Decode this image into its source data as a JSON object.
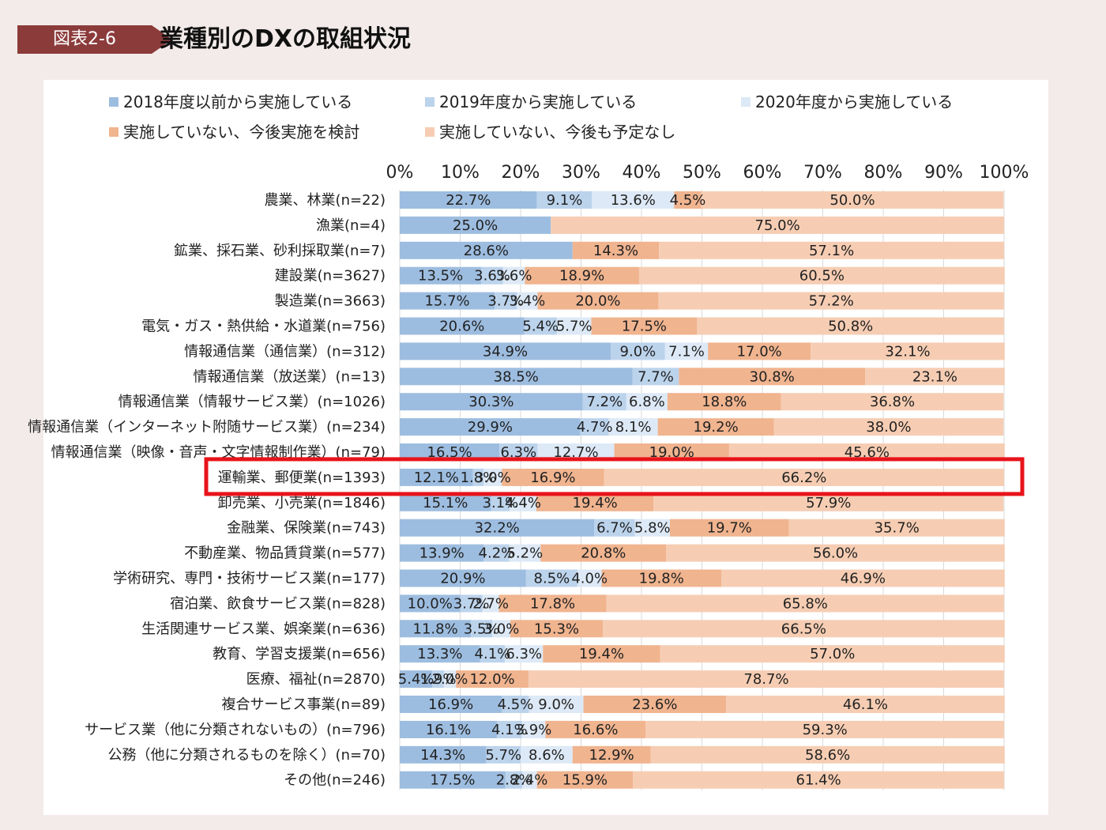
{
  "header": {
    "tag": "図表2-6",
    "title": "業種別のDXの取組状況",
    "tag_color": "#8c3b3b"
  },
  "highlight": {
    "category_index": 11,
    "color": "#e8141b"
  },
  "chart_data": {
    "type": "bar",
    "orientation": "horizontal",
    "stacked": true,
    "xlim": [
      0,
      100
    ],
    "ticks": [
      "0%",
      "10%",
      "20%",
      "30%",
      "40%",
      "50%",
      "60%",
      "70%",
      "80%",
      "90%",
      "100%"
    ],
    "legend_position": "top",
    "categories": [
      "農業、林業(n=22)",
      "漁業(n=4)",
      "鉱業、採石業、砂利採取業(n=7)",
      "建設業(n=3627)",
      "製造業(n=3663)",
      "電気・ガス・熱供給・水道業(n=756)",
      "情報通信業（通信業）(n=312)",
      "情報通信業（放送業）(n=13)",
      "情報通信業（情報サービス業）(n=1026)",
      "情報通信業（インターネット附随サービス業）(n=234)",
      "情報通信業（映像・音声・文字情報制作業）(n=79)",
      "運輸業、郵便業(n=1393)",
      "卸売業、小売業(n=1846)",
      "金融業、保険業(n=743)",
      "不動産業、物品賃貸業(n=577)",
      "学術研究、専門・技術サービス業(n=177)",
      "宿泊業、飲食サービス業(n=828)",
      "生活関連サービス業、娯楽業(n=636)",
      "教育、学習支援業(n=656)",
      "医療、福祉(n=2870)",
      "複合サービス事業(n=89)",
      "サービス業（他に分類されないもの）(n=796)",
      "公務（他に分類されるものを除く）(n=70)",
      "その他(n=246)"
    ],
    "series": [
      {
        "name": "2018年度以前から実施している",
        "color": "#9dbde0",
        "values": [
          22.7,
          25.0,
          28.6,
          13.5,
          15.7,
          20.6,
          34.9,
          38.5,
          30.3,
          29.9,
          16.5,
          12.1,
          15.1,
          32.2,
          13.9,
          20.9,
          10.0,
          11.8,
          13.3,
          5.4,
          16.9,
          16.1,
          14.3,
          17.5
        ],
        "labels": [
          "22.7%",
          "25.0%",
          "28.6%",
          "13.5%",
          "15.7%",
          "20.6%",
          "34.9%",
          "38.5%",
          "30.3%",
          "29.9%",
          "16.5%",
          "12.1%",
          "15.1%",
          "32.2%",
          "13.9%",
          "20.9%",
          "10.0%",
          "11.8%",
          "13.3%",
          "5.4%",
          "16.9%",
          "16.1%",
          "14.3%",
          "17.5%"
        ]
      },
      {
        "name": "2019年度から実施している",
        "color": "#bcd3ec",
        "values": [
          9.1,
          0,
          0,
          3.6,
          3.7,
          5.4,
          9.0,
          7.7,
          7.2,
          4.7,
          6.3,
          1.8,
          3.1,
          6.7,
          4.2,
          8.5,
          3.7,
          3.5,
          4.1,
          1.9,
          4.5,
          4.1,
          5.7,
          2.8
        ],
        "labels": [
          "9.1%",
          "",
          "",
          "3.6%",
          "3.7%",
          "5.4%",
          "9.0%",
          "7.7%",
          "7.2%",
          "4.7%",
          "6.3%",
          "1.8%",
          "3.1%",
          "6.7%",
          "4.2%",
          "8.5%",
          "3.7%",
          "3.5%",
          "4.1%",
          "1.9%",
          "4.5%",
          "4.1%",
          "5.7%",
          "2.8%"
        ]
      },
      {
        "name": "2020年度から実施している",
        "color": "#dde9f6",
        "values": [
          13.6,
          0,
          0,
          3.6,
          3.4,
          5.7,
          7.1,
          0,
          6.8,
          8.1,
          12.7,
          3.0,
          4.4,
          5.8,
          5.2,
          4.0,
          2.7,
          3.0,
          6.3,
          2.0,
          9.0,
          3.9,
          8.6,
          2.4
        ],
        "labels": [
          "13.6%",
          "",
          "",
          "3.6%",
          "3.4%",
          "5.7%",
          "7.1%",
          "",
          "6.8%",
          "8.1%",
          "12.7%",
          "3.0%",
          "4.4%",
          "5.8%",
          "5.2%",
          "4.0%",
          "2.7%",
          "3.0%",
          "6.3%",
          "2.0%",
          "9.0%",
          "3.9%",
          "8.6%",
          "2.4%"
        ]
      },
      {
        "name": "実施していない、今後実施を検討",
        "color": "#f0b48f",
        "values": [
          4.5,
          0,
          14.3,
          18.9,
          20.0,
          17.5,
          17.0,
          30.8,
          18.8,
          19.2,
          19.0,
          16.9,
          19.4,
          19.7,
          20.8,
          19.8,
          17.8,
          15.3,
          19.4,
          12.0,
          23.6,
          16.6,
          12.9,
          15.9
        ],
        "labels": [
          "4.5%",
          "",
          "14.3%",
          "18.9%",
          "20.0%",
          "17.5%",
          "17.0%",
          "30.8%",
          "18.8%",
          "19.2%",
          "19.0%",
          "16.9%",
          "19.4%",
          "19.7%",
          "20.8%",
          "19.8%",
          "17.8%",
          "15.3%",
          "19.4%",
          "12.0%",
          "23.6%",
          "16.6%",
          "12.9%",
          "15.9%"
        ]
      },
      {
        "name": "実施していない、今後も予定なし",
        "color": "#f6cdb3",
        "values": [
          50.0,
          75.0,
          57.1,
          60.5,
          57.2,
          50.8,
          32.1,
          23.1,
          36.8,
          38.0,
          45.6,
          66.2,
          57.9,
          35.7,
          56.0,
          46.9,
          65.8,
          66.5,
          57.0,
          78.7,
          46.1,
          59.3,
          58.6,
          61.4
        ],
        "labels": [
          "50.0%",
          "75.0%",
          "57.1%",
          "60.5%",
          "57.2%",
          "50.8%",
          "32.1%",
          "23.1%",
          "36.8%",
          "38.0%",
          "45.6%",
          "66.2%",
          "57.9%",
          "35.7%",
          "56.0%",
          "46.9%",
          "65.8%",
          "66.5%",
          "57.0%",
          "78.7%",
          "46.1%",
          "59.3%",
          "58.6%",
          "61.4%"
        ]
      }
    ]
  }
}
